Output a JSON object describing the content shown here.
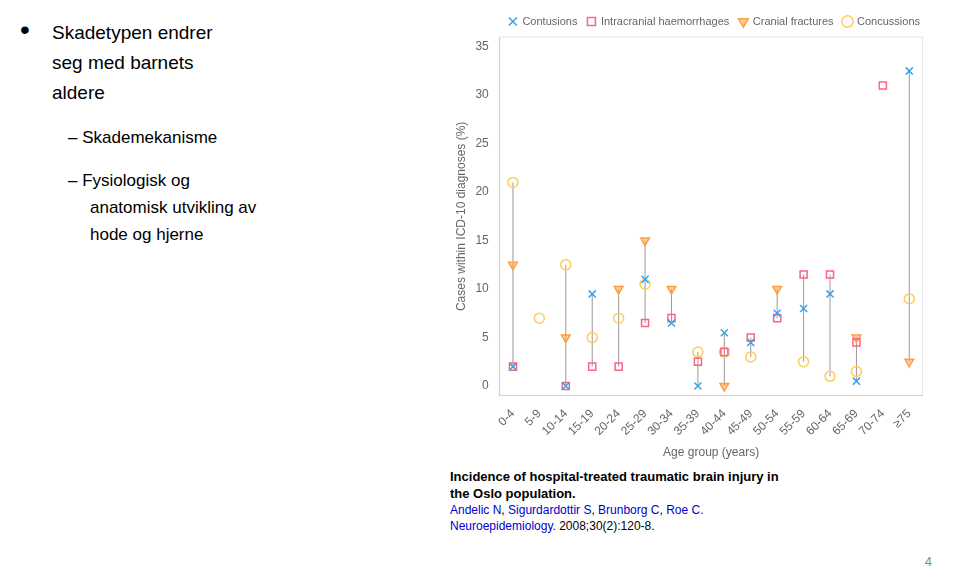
{
  "chart_data": {
    "type": "scatter",
    "title": [
      "Incidence of hospital-treated traumatic brain injury in",
      "the Oslo population."
    ],
    "categories": [
      "0-4",
      "5-9",
      "10-14",
      "15-19",
      "20-24",
      "25-29",
      "30-34",
      "35-39",
      "40-44",
      "45-49",
      "50-54",
      "55-59",
      "60-64",
      "65-69",
      "70-74",
      "≥75"
    ],
    "series": [
      {
        "name": "Contusions",
        "marker": "x",
        "values": [
          2.0,
          null,
          0.0,
          9.5,
          null,
          11.0,
          6.5,
          0.0,
          5.5,
          4.5,
          7.5,
          8.0,
          9.5,
          0.5,
          null,
          32.5
        ]
      },
      {
        "name": "Intracranial haemorrhages",
        "marker": "square",
        "values": [
          2.0,
          null,
          0.0,
          2.0,
          2.0,
          6.5,
          7.0,
          2.5,
          3.5,
          5.0,
          7.0,
          11.5,
          11.5,
          4.5,
          31.0,
          null
        ]
      },
      {
        "name": "Cranial fractures",
        "marker": "triangle_down",
        "values": [
          12.5,
          null,
          5.0,
          null,
          10.0,
          15.0,
          10.0,
          null,
          0.0,
          null,
          10.0,
          null,
          null,
          5.0,
          null,
          2.5
        ]
      },
      {
        "name": "Concussions",
        "marker": "circle",
        "values": [
          21.0,
          7.0,
          12.5,
          5.0,
          7.0,
          10.5,
          null,
          3.5,
          3.5,
          3.0,
          null,
          2.5,
          1.0,
          1.5,
          null,
          9.0
        ]
      }
    ],
    "xlabel": "Age group (years)",
    "ylabel": "Cases within ICD-10 diagnoses (%)",
    "ylim": [
      -1,
      36
    ],
    "yticks": [
      0,
      5,
      10,
      15,
      20,
      25,
      30,
      35
    ],
    "grid": false,
    "legend": "upper right",
    "annotations": [
      {
        "bullet": "•",
        "lines": [
          "Skadetypen endrer",
          "seg med barnets",
          "aldere"
        ]
      },
      {
        "lines": [
          "– Skademekanisme"
        ]
      },
      {
        "lines": [
          "– Fysiologisk og",
          "anatomisk utvikling av",
          "hode og hjerne"
        ]
      },
      {
        "parts": [
          {
            "text": "Andelic N",
            "color": "#0000cc"
          },
          {
            "text": ", "
          },
          {
            "text": "Sigurdardottir S",
            "color": "#0000cc"
          },
          {
            "text": ", "
          },
          {
            "text": "Brunborg C",
            "color": "#0000cc"
          },
          {
            "text": ", "
          },
          {
            "text": "Roe C.",
            "color": "#0000cc"
          }
        ]
      },
      {
        "parts": [
          {
            "text": "Neuroepidemiology.",
            "color": "#0000cc"
          },
          {
            "text": " 2008;30(2):120-8."
          }
        ]
      },
      {
        "text": "4"
      }
    ]
  }
}
